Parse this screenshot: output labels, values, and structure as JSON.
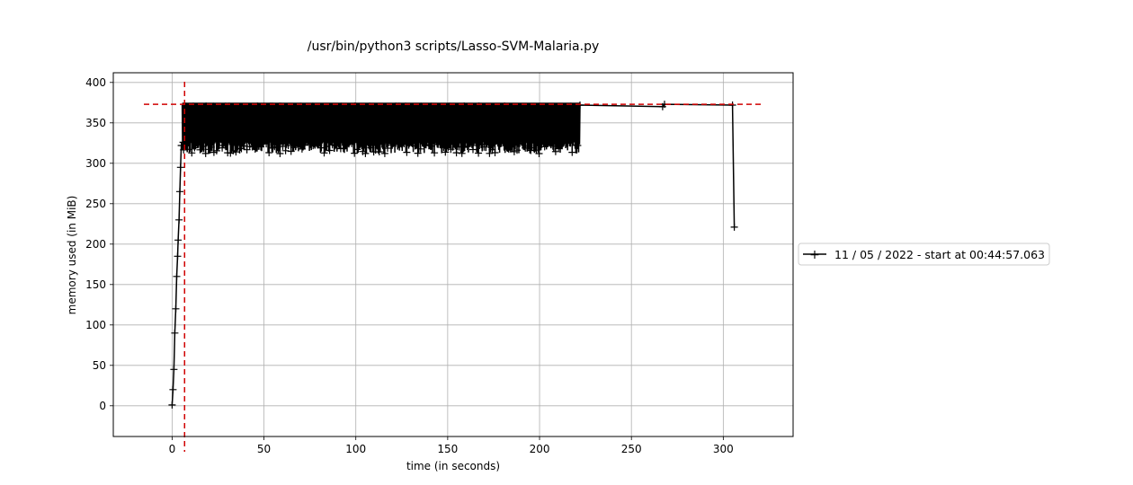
{
  "chart_data": {
    "type": "line",
    "title": "/usr/bin/python3 scripts/Lasso-SVM-Malaria.py",
    "xlabel": "time (in seconds)",
    "ylabel": "memory used (in MiB)",
    "xlim": [
      -32,
      338
    ],
    "ylim": [
      -38,
      412
    ],
    "xticks": [
      0,
      50,
      100,
      150,
      200,
      250,
      300
    ],
    "yticks": [
      0,
      50,
      100,
      150,
      200,
      250,
      300,
      350,
      400
    ],
    "grid": true,
    "legend_position": "outside-right",
    "series": [
      {
        "name": "11 / 05 / 2022 - start at 00:44:57.063",
        "color": "#000000",
        "marker": "+",
        "ramp": [
          [
            0,
            1
          ],
          [
            0.5,
            20
          ],
          [
            1,
            45
          ],
          [
            1.5,
            90
          ],
          [
            2,
            120
          ],
          [
            2.5,
            160
          ],
          [
            3,
            185
          ],
          [
            3.3,
            205
          ],
          [
            3.8,
            230
          ],
          [
            4.2,
            265
          ],
          [
            4.6,
            295
          ],
          [
            5,
            322
          ],
          [
            6,
            326
          ]
        ],
        "oscillation": {
          "x_start": 5.5,
          "x_end": 222,
          "y_low": 312,
          "y_high": 375
        },
        "plateau": [
          [
            222,
            372
          ],
          [
            267,
            370
          ],
          [
            268,
            373
          ],
          [
            305,
            372
          ],
          [
            306,
            221
          ]
        ]
      }
    ],
    "markers": {
      "color": "#d00000",
      "peak_x": 6.8,
      "peak_y": 373
    }
  }
}
